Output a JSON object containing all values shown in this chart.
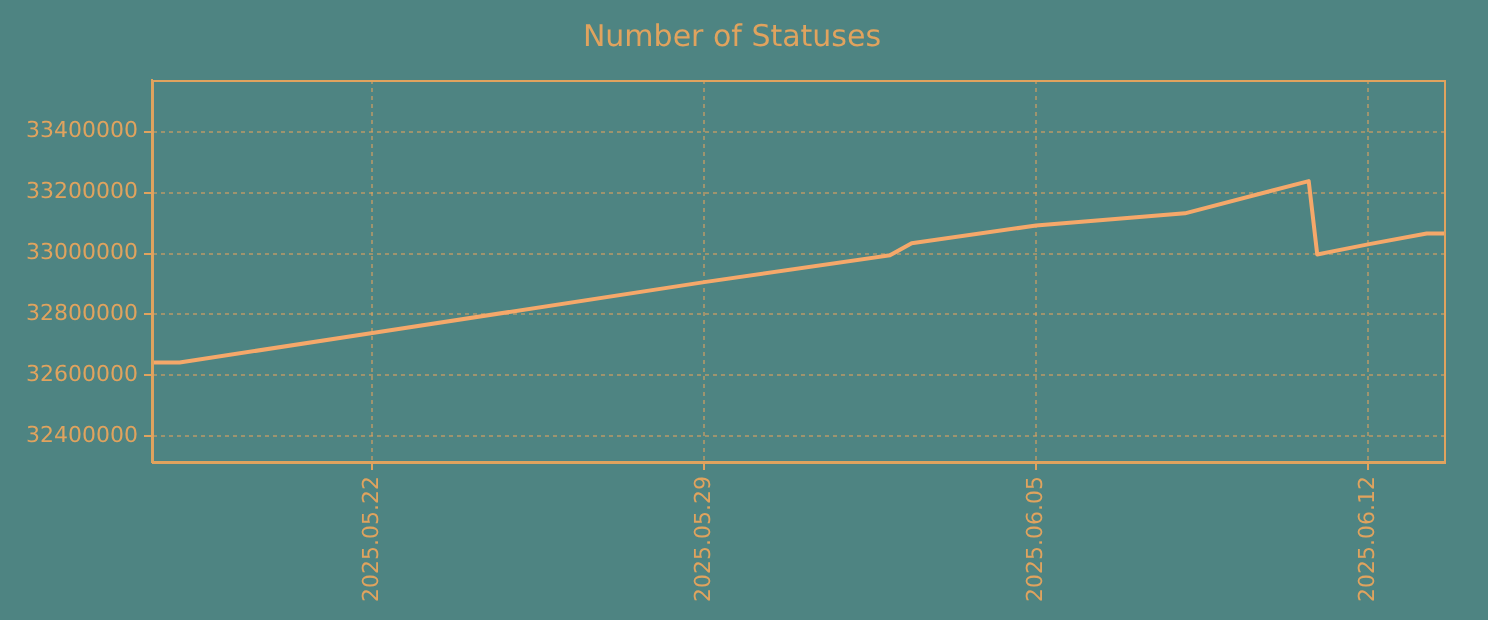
{
  "chart_data": {
    "type": "line",
    "title": "Number of Statuses",
    "x": [
      "2025-05-17T08:24",
      "2025-05-17T22:24",
      "2025-05-22",
      "2025-05-29",
      "2025-06-01T22:00",
      "2025-06-02T09:00",
      "2025-06-05",
      "2025-06-08T03:20",
      "2025-06-10T18:00",
      "2025-06-10T22:20",
      "2025-06-12",
      "2025-06-13T05:45",
      "2025-06-13T14:30"
    ],
    "series": [
      {
        "color": "#f5a86a",
        "values": [
          32642000,
          32642000,
          32739000,
          32906000,
          32994000,
          33034000,
          33092000,
          33132000,
          33238000,
          32997000,
          33030000,
          33066000,
          33066000
        ]
      }
    ],
    "xlim": [
      "2025-05-17T08:24",
      "2025-06-13T14:30"
    ],
    "xticks": [
      {
        "value": "2025-05-22",
        "label": "2025.05.22"
      },
      {
        "value": "2025-05-29",
        "label": "2025.05.29"
      },
      {
        "value": "2025-06-05",
        "label": "2025.06.05"
      },
      {
        "value": "2025-06-12",
        "label": "2025.06.12"
      }
    ],
    "ylim": [
      32315000,
      33570000
    ],
    "yticks": [
      32400000,
      32600000,
      32800000,
      33000000,
      33200000,
      33400000
    ],
    "grid": true,
    "legend": false,
    "marker": "none",
    "line_style": "solid"
  }
}
